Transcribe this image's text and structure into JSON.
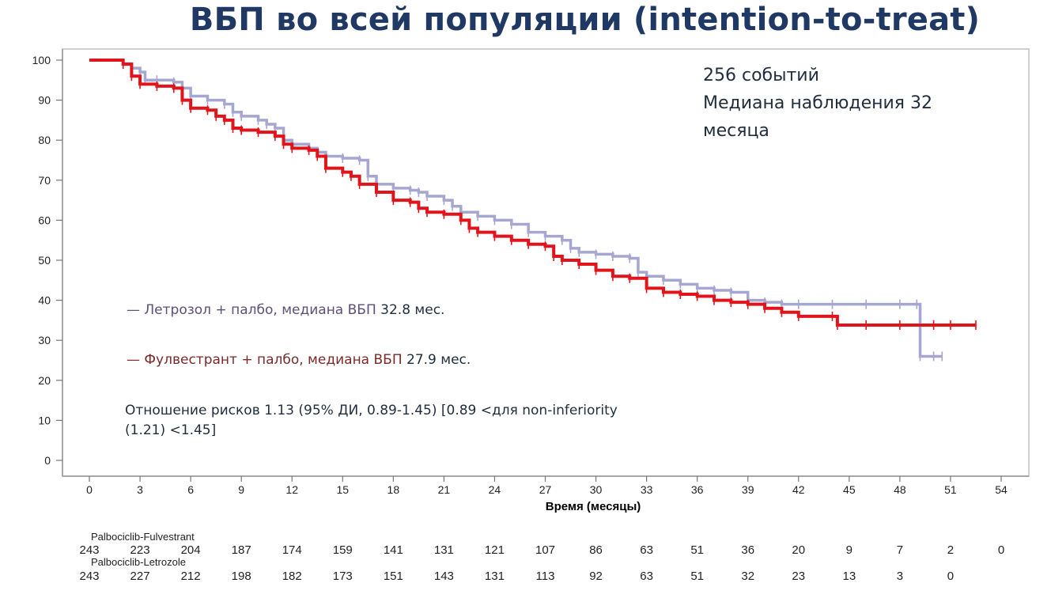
{
  "title": "ВБП во всей популяции (intention-to-treat)",
  "info": {
    "events": "256 событий",
    "median_followup_1": "Медиана наблюдения 32",
    "median_followup_2": "месяца"
  },
  "legend": {
    "letrozole_prefix": "— Летрозол + палбо, медиана ВБП",
    "letrozole_value": " 32.8 мес.",
    "fulvestrant_prefix": "— Фулвестрант + палбо, медиана ВБП",
    "fulvestrant_value": " 27.9 мес.",
    "hazard_ratio_1": "Отношение рисков 1.13 (95% ДИ, 0.89-1.45) [0.89 <для non-inferiority",
    "hazard_ratio_2": "(1.21) <1.45]"
  },
  "colors": {
    "letrozole": "#a6a6d2",
    "fulvestrant": "#e0141a",
    "title": "#1f3864"
  },
  "chart_data": {
    "type": "line",
    "xlabel": "Время (месяцы)",
    "ylabel": "",
    "xlim": [
      0,
      54
    ],
    "ylim": [
      0,
      100
    ],
    "x_ticks": [
      "0",
      "3",
      "6",
      "9",
      "12",
      "15",
      "18",
      "21",
      "24",
      "27",
      "30",
      "33",
      "36",
      "39",
      "42",
      "45",
      "48",
      "51",
      "54"
    ],
    "y_ticks": [
      "0",
      "10",
      "20",
      "30",
      "40",
      "50",
      "60",
      "70",
      "80",
      "90",
      "100"
    ],
    "series": [
      {
        "name": "Летрозол + палбо",
        "color": "#a6a6d2",
        "points": [
          [
            0,
            100
          ],
          [
            2,
            99
          ],
          [
            2.5,
            98
          ],
          [
            3,
            97
          ],
          [
            3.3,
            95
          ],
          [
            4,
            95
          ],
          [
            5,
            94.5
          ],
          [
            5.5,
            93
          ],
          [
            6,
            91
          ],
          [
            7,
            90
          ],
          [
            8,
            89
          ],
          [
            8.5,
            87
          ],
          [
            9,
            86
          ],
          [
            10,
            85
          ],
          [
            10.5,
            84
          ],
          [
            11,
            83
          ],
          [
            11.5,
            80
          ],
          [
            12,
            79
          ],
          [
            13,
            78
          ],
          [
            13.5,
            77
          ],
          [
            14,
            76
          ],
          [
            15,
            75.5
          ],
          [
            16,
            75
          ],
          [
            16.5,
            71
          ],
          [
            17,
            69
          ],
          [
            18,
            68
          ],
          [
            19,
            67.5
          ],
          [
            19.5,
            67
          ],
          [
            20,
            66
          ],
          [
            21,
            65
          ],
          [
            21.5,
            63.5
          ],
          [
            22,
            62
          ],
          [
            23,
            61
          ],
          [
            24,
            60
          ],
          [
            25,
            59
          ],
          [
            26,
            57
          ],
          [
            27,
            56
          ],
          [
            28,
            55
          ],
          [
            28.5,
            53
          ],
          [
            29,
            52
          ],
          [
            30,
            51.5
          ],
          [
            31,
            51
          ],
          [
            32,
            50.5
          ],
          [
            32.5,
            47
          ],
          [
            33,
            46
          ],
          [
            34,
            45
          ],
          [
            35,
            44
          ],
          [
            36,
            43
          ],
          [
            37,
            42.5
          ],
          [
            38,
            42
          ],
          [
            39,
            40
          ],
          [
            40,
            39.5
          ],
          [
            41,
            39
          ],
          [
            42,
            39
          ],
          [
            44,
            39
          ],
          [
            46,
            39
          ],
          [
            48,
            39
          ],
          [
            49,
            39
          ],
          [
            49.2,
            26
          ],
          [
            50,
            26
          ],
          [
            50.5,
            26
          ]
        ]
      },
      {
        "name": "Фулвестрант + палбо",
        "color": "#e0141a",
        "points": [
          [
            0,
            100
          ],
          [
            2,
            99
          ],
          [
            2.5,
            96
          ],
          [
            3,
            94
          ],
          [
            4,
            93.5
          ],
          [
            5,
            93
          ],
          [
            5.5,
            90
          ],
          [
            6,
            88
          ],
          [
            7,
            87.5
          ],
          [
            7.5,
            86
          ],
          [
            8,
            85
          ],
          [
            8.5,
            83
          ],
          [
            9,
            82.5
          ],
          [
            10,
            82
          ],
          [
            11,
            81
          ],
          [
            11.5,
            79
          ],
          [
            12,
            78
          ],
          [
            13,
            77.5
          ],
          [
            13.5,
            76
          ],
          [
            14,
            73
          ],
          [
            15,
            72
          ],
          [
            15.5,
            71
          ],
          [
            16,
            69
          ],
          [
            17,
            67
          ],
          [
            18,
            65
          ],
          [
            19,
            64.5
          ],
          [
            19.5,
            63
          ],
          [
            20,
            62
          ],
          [
            21,
            61.5
          ],
          [
            22,
            60
          ],
          [
            22.5,
            58
          ],
          [
            23,
            57
          ],
          [
            24,
            56
          ],
          [
            25,
            55
          ],
          [
            26,
            54
          ],
          [
            27,
            53.5
          ],
          [
            27.5,
            51
          ],
          [
            28,
            50
          ],
          [
            29,
            49
          ],
          [
            30,
            47.5
          ],
          [
            31,
            46
          ],
          [
            32,
            45.5
          ],
          [
            33,
            43
          ],
          [
            34,
            42
          ],
          [
            35,
            41.5
          ],
          [
            36,
            41
          ],
          [
            37,
            40
          ],
          [
            38,
            39.5
          ],
          [
            39,
            39
          ],
          [
            40,
            38
          ],
          [
            41,
            37
          ],
          [
            42,
            36
          ],
          [
            44,
            36
          ],
          [
            44.3,
            33.8
          ],
          [
            46,
            33.8
          ],
          [
            48,
            33.8
          ],
          [
            50,
            33.8
          ],
          [
            51,
            33.8
          ],
          [
            52.5,
            33.8
          ]
        ]
      }
    ]
  },
  "risk_table": {
    "row1_label": "Palbociclib-Fulvestrant",
    "row1": [
      "243",
      "223",
      "204",
      "187",
      "174",
      "159",
      "141",
      "131",
      "121",
      "107",
      "86",
      "63",
      "51",
      "36",
      "20",
      "9",
      "7",
      "2",
      "0"
    ],
    "row2_label": "Palbociclib-Letrozole",
    "row2": [
      "243",
      "227",
      "212",
      "198",
      "182",
      "173",
      "151",
      "143",
      "131",
      "113",
      "92",
      "63",
      "51",
      "32",
      "23",
      "13",
      "3",
      "0"
    ]
  }
}
